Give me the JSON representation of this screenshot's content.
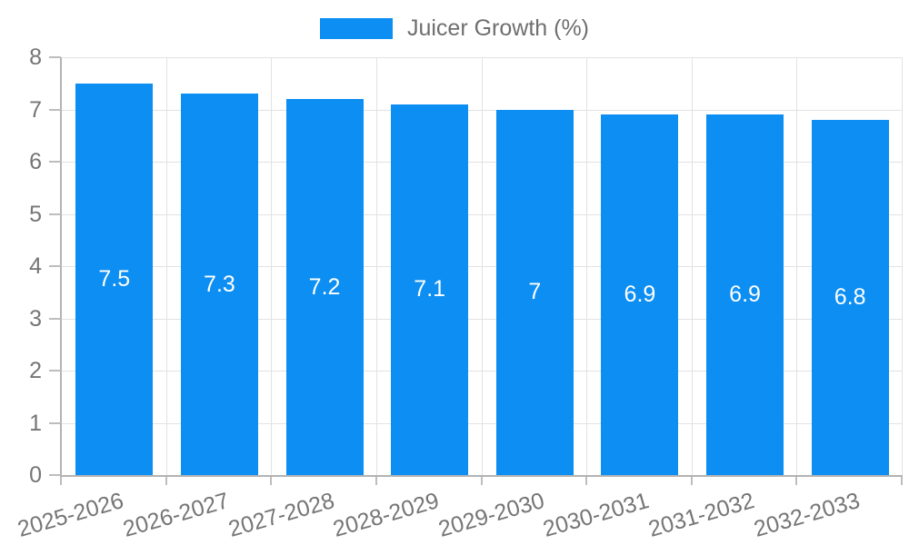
{
  "legend": {
    "label": "Juicer Growth (%)",
    "position": "top"
  },
  "colors": {
    "bar": "#0d8ef2",
    "value_label": "#ffffff",
    "axis_text": "#757575",
    "legend_text": "#6f6f6f",
    "grid": "#e2e2e2",
    "axis_line": "#b3b3b3",
    "tick": "#bdbdbd",
    "background": "#ffffff"
  },
  "chart_data": {
    "type": "bar",
    "title": "",
    "xlabel": "",
    "ylabel": "",
    "categories": [
      "2025-2026",
      "2026-2027",
      "2027-2028",
      "2028-2029",
      "2029-2030",
      "2030-2031",
      "2031-2032",
      "2032-2033"
    ],
    "series": [
      {
        "name": "Juicer Growth (%)",
        "values": [
          7.5,
          7.3,
          7.2,
          7.1,
          7,
          6.9,
          6.9,
          6.8
        ]
      }
    ],
    "value_labels": [
      "7.5",
      "7.3",
      "7.2",
      "7.1",
      "7",
      "6.9",
      "6.9",
      "6.8"
    ],
    "bar_label_position": "center",
    "ylim": [
      0,
      8
    ],
    "yticks": [
      0,
      1,
      2,
      3,
      4,
      5,
      6,
      7,
      8
    ],
    "grid": true,
    "legend_position": "top",
    "x_label_rotation_deg": -16
  }
}
